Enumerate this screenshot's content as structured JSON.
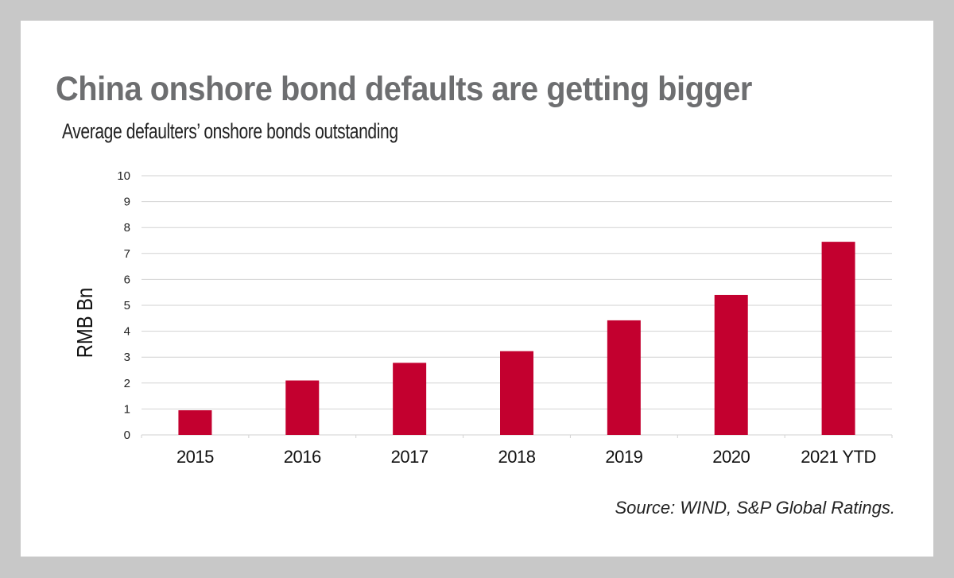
{
  "title": "China onshore bond defaults are getting bigger",
  "subtitle": "Average defaulters’ onshore bonds outstanding",
  "source": "Source: WIND, S&P Global Ratings.",
  "colors": {
    "bar": "#c3002f",
    "grid": "#d2d2d2",
    "title": "#6d6e70",
    "background": "#c8c8c8",
    "card": "#ffffff"
  },
  "chart_data": {
    "type": "bar",
    "categories": [
      "2015",
      "2016",
      "2017",
      "2018",
      "2019",
      "2020",
      "2021 YTD"
    ],
    "values": [
      0.95,
      2.1,
      2.78,
      3.23,
      4.42,
      5.4,
      7.45
    ],
    "title": "China onshore bond defaults are getting bigger",
    "subtitle": "Average defaulters’ onshore bonds outstanding",
    "xlabel": "",
    "ylabel": "RMB Bn",
    "ylim": [
      0,
      10
    ],
    "yticks": [
      0,
      1,
      2,
      3,
      4,
      5,
      6,
      7,
      8,
      9,
      10
    ],
    "grid": true,
    "legend": "none"
  }
}
